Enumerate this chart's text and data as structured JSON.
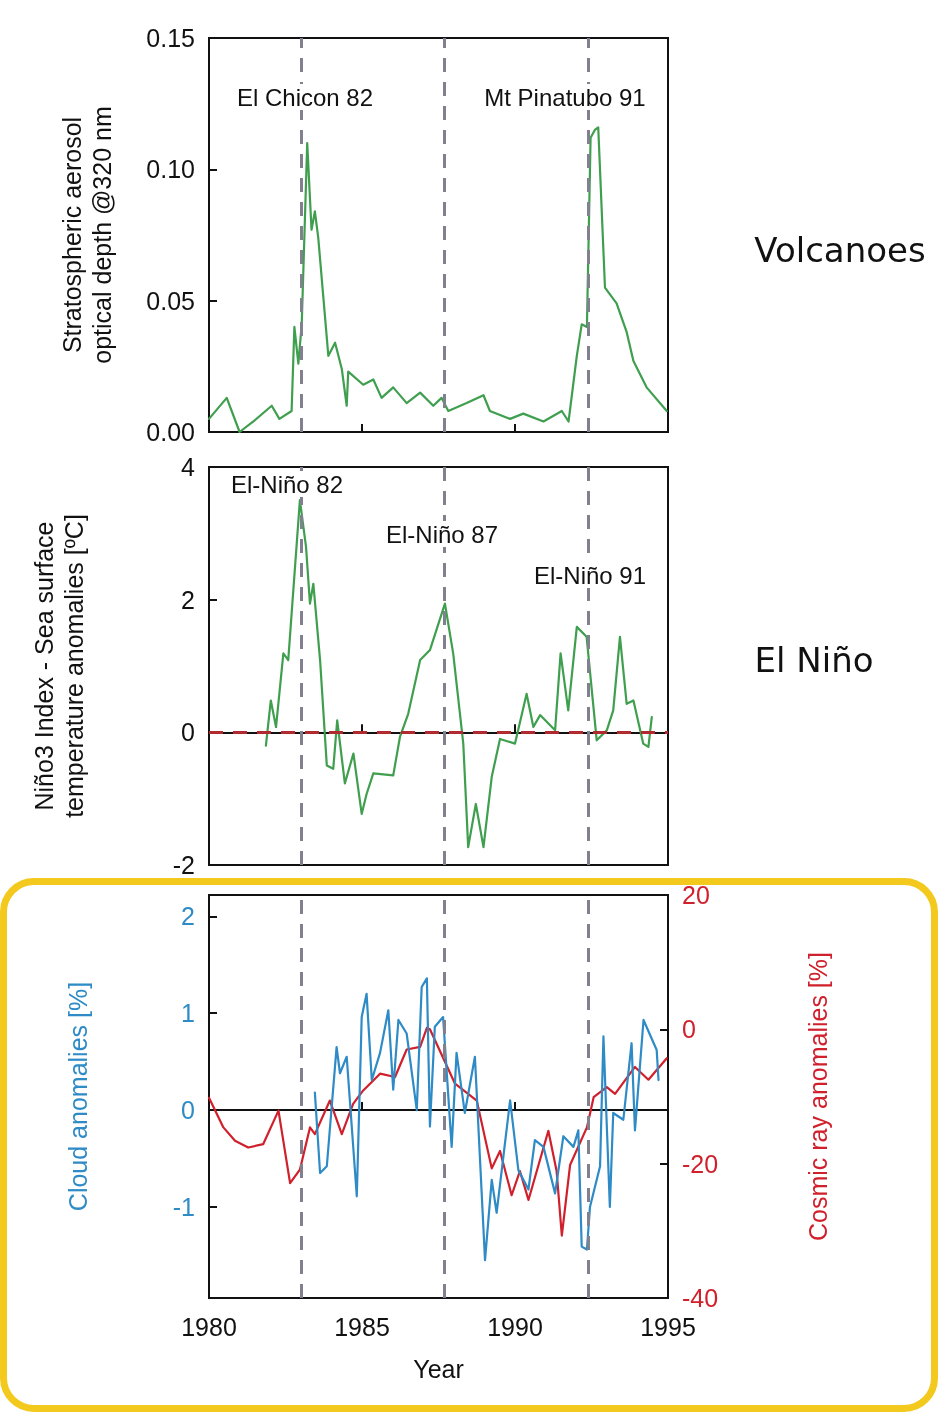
{
  "chart_data": [
    {
      "type": "line",
      "ylabel": "Stratospheric aerosol optical depth @320 nm",
      "xlim": [
        1980,
        1995
      ],
      "xticks": [
        1980,
        1985,
        1990,
        1995
      ],
      "ylim": [
        0,
        0.15
      ],
      "yticks": [
        {
          "value": 0,
          "label": "0.00"
        },
        {
          "value": 0.05,
          "label": "0.05"
        },
        {
          "value": 0.1,
          "label": "0.10"
        },
        {
          "value": 0.15,
          "label": "0.15"
        }
      ],
      "tick_labels": "y",
      "series": [
        {
          "color": "#3f9f4f",
          "x": [
            1980.0,
            1980.58,
            1981.0,
            1981.45,
            1982.05,
            1982.3,
            1982.7,
            1982.79,
            1982.92,
            1983.03,
            1983.21,
            1983.35,
            1983.46,
            1983.57,
            1983.9,
            1984.12,
            1984.34,
            1984.5,
            1984.55,
            1985.04,
            1985.37,
            1985.64,
            1986.02,
            1986.46,
            1986.9,
            1987.33,
            1987.6,
            1987.82,
            1988.42,
            1988.97,
            1989.18,
            1989.84,
            1990.27,
            1990.93,
            1991.53,
            1991.75,
            1992.02,
            1992.18,
            1992.35,
            1992.47,
            1992.61,
            1992.72,
            1992.94,
            1993.32,
            1993.65,
            1993.87,
            1994.3,
            1994.96
          ],
          "values": [
            0.005,
            0.013,
            0.0,
            0.004,
            0.01,
            0.005,
            0.008,
            0.04,
            0.026,
            0.041,
            0.11,
            0.077,
            0.084,
            0.074,
            0.029,
            0.034,
            0.024,
            0.01,
            0.023,
            0.018,
            0.02,
            0.013,
            0.017,
            0.011,
            0.015,
            0.01,
            0.013,
            0.008,
            0.011,
            0.014,
            0.008,
            0.005,
            0.007,
            0.004,
            0.008,
            0.004,
            0.029,
            0.041,
            0.04,
            0.112,
            0.115,
            0.116,
            0.055,
            0.049,
            0.038,
            0.027,
            0.017,
            0.008
          ]
        }
      ],
      "ref_lines": [
        {
          "axis": "x",
          "value": 1983.0,
          "color": "#80808f",
          "line_style": "dashed"
        },
        {
          "axis": "x",
          "value": 1987.7,
          "color": "#80808f",
          "line_style": "dashed"
        },
        {
          "axis": "x",
          "value": 1992.4,
          "color": "#80808f",
          "line_style": "dashed"
        }
      ],
      "annotations": [
        "El Chicon 82",
        "Mt Pinatubo 91",
        "Volcanoes"
      ]
    },
    {
      "type": "line",
      "ylabel": "Niño3 Index - Sea surface temperature anomalies [ºC]",
      "xlim": [
        1980,
        1995
      ],
      "xticks": [
        1980,
        1985,
        1990,
        1995
      ],
      "ylim": [
        -2,
        4
      ],
      "yticks": [
        -2,
        0,
        2,
        4
      ],
      "tick_labels": "y",
      "series": [
        {
          "color": "#3f9f4f",
          "x": [
            1981.86,
            1982.02,
            1982.19,
            1982.43,
            1982.59,
            1982.97,
            1983.17,
            1983.3,
            1983.41,
            1983.63,
            1983.85,
            1984.06,
            1984.19,
            1984.44,
            1984.72,
            1984.99,
            1985.15,
            1985.37,
            1986.02,
            1986.24,
            1986.51,
            1986.9,
            1987.22,
            1987.71,
            1987.98,
            1988.31,
            1988.47,
            1988.72,
            1988.97,
            1989.24,
            1989.51,
            1990.0,
            1990.38,
            1990.6,
            1990.82,
            1991.31,
            1991.49,
            1991.74,
            1992.02,
            1992.34,
            1992.67,
            1993.0,
            1993.21,
            1993.43,
            1993.65,
            1993.87,
            1994.19,
            1994.36,
            1994.47
          ],
          "values": [
            -0.2,
            0.48,
            0.08,
            1.19,
            1.09,
            3.5,
            2.8,
            1.94,
            2.24,
            1.09,
            -0.5,
            -0.55,
            0.18,
            -0.77,
            -0.32,
            -1.23,
            -0.93,
            -0.62,
            -0.65,
            -0.07,
            0.28,
            1.09,
            1.24,
            1.94,
            1.19,
            -0.17,
            -1.73,
            -1.08,
            -1.73,
            -0.67,
            -0.1,
            -0.17,
            0.58,
            0.08,
            0.26,
            0.03,
            1.19,
            0.33,
            1.59,
            1.44,
            -0.12,
            0.03,
            0.33,
            1.44,
            0.43,
            0.48,
            -0.17,
            -0.22,
            0.23
          ]
        }
      ],
      "ref_lines": [
        {
          "axis": "y",
          "value": 0,
          "color": "#b02a30",
          "line_style": "dashed"
        },
        {
          "axis": "x",
          "value": 1983.0,
          "color": "#80808f",
          "line_style": "dashed"
        },
        {
          "axis": "x",
          "value": 1987.7,
          "color": "#80808f",
          "line_style": "dashed"
        },
        {
          "axis": "x",
          "value": 1992.4,
          "color": "#80808f",
          "line_style": "dashed"
        }
      ],
      "annotations": [
        "El-Niño 82",
        "El-Niño 87",
        "El-Niño 91",
        "El Niño"
      ]
    },
    {
      "type": "line",
      "xlabel": "Year",
      "ylabel": "Cloud anomalies [%]",
      "y2label": "Cosmic ray anomalies [%]",
      "xlim": [
        1980,
        1995
      ],
      "xticks": [
        1980,
        1985,
        1990,
        1995
      ],
      "ylim": [
        -1.94,
        2.22
      ],
      "yticks": [
        -1,
        0,
        1,
        2
      ],
      "y2lim": [
        -40,
        20
      ],
      "y2ticks": [
        -40,
        -20,
        0,
        20
      ],
      "series": [
        {
          "color": "#d0202c",
          "axis": "y2",
          "x": [
            1980.0,
            1980.47,
            1980.85,
            1981.28,
            1981.77,
            1982.27,
            1982.65,
            1982.97,
            1983.3,
            1983.46,
            1983.95,
            1984.34,
            1984.71,
            1985.04,
            1985.59,
            1986.08,
            1986.46,
            1986.9,
            1987.12,
            1987.22,
            1988.04,
            1988.75,
            1989.24,
            1989.51,
            1989.89,
            1990.16,
            1990.44,
            1991.09,
            1991.36,
            1991.53,
            1991.8,
            1992.35,
            1992.57,
            1993.0,
            1993.27,
            1993.92,
            1994.36,
            1994.96
          ],
          "values": [
            -10.2,
            -14.6,
            -16.6,
            -17.6,
            -17.1,
            -12.1,
            -22.9,
            -20.9,
            -14.6,
            -15.6,
            -10.6,
            -15.6,
            -11.1,
            -9.1,
            -6.6,
            -7.1,
            -3.0,
            -2.6,
            0.2,
            0,
            -8.1,
            -10.6,
            -20.7,
            -18.1,
            -24.7,
            -21.1,
            -25.4,
            -15.1,
            -21.1,
            -30.7,
            -20.2,
            -14.6,
            -10.1,
            -8.6,
            -9.6,
            -5.6,
            -7.5,
            -4.3
          ]
        },
        {
          "color": "#2e8bc6",
          "x": [
            1983.46,
            1983.63,
            1983.85,
            1984.17,
            1984.28,
            1984.5,
            1984.83,
            1984.99,
            1985.15,
            1985.32,
            1985.59,
            1985.86,
            1986.02,
            1986.19,
            1986.46,
            1986.79,
            1986.95,
            1987.12,
            1987.22,
            1987.38,
            1987.65,
            1987.93,
            1988.09,
            1988.36,
            1988.69,
            1989.02,
            1989.24,
            1989.4,
            1989.84,
            1990.11,
            1990.44,
            1990.65,
            1990.93,
            1991.31,
            1991.58,
            1991.91,
            1992.07,
            1992.18,
            1992.35,
            1992.45,
            1992.78,
            1992.89,
            1993.1,
            1993.21,
            1993.54,
            1993.81,
            1993.92,
            1994.2,
            1994.63,
            1994.69
          ],
          "values": [
            0.18,
            -0.65,
            -0.58,
            0.65,
            0.38,
            0.55,
            -0.89,
            0.96,
            1.2,
            0.31,
            0.59,
            1.03,
            0.21,
            0.93,
            0.79,
            0.0,
            1.27,
            1.36,
            -0.17,
            0.86,
            0.96,
            -0.38,
            0.59,
            -0.03,
            0.55,
            -1.55,
            -0.72,
            -1.06,
            0.1,
            -0.62,
            -0.82,
            -0.31,
            -0.38,
            -0.86,
            -0.27,
            -0.38,
            -0.21,
            -1.41,
            -1.44,
            -1.0,
            -0.58,
            0.76,
            -1.0,
            -0.03,
            -0.1,
            0.69,
            -0.21,
            0.93,
            0.62,
            0.31
          ]
        }
      ],
      "ref_lines": [
        {
          "axis": "x",
          "value": 1983.0,
          "color": "#80808f",
          "line_style": "dashed"
        },
        {
          "axis": "x",
          "value": 1987.7,
          "color": "#80808f",
          "line_style": "dashed"
        },
        {
          "axis": "x",
          "value": 1992.4,
          "color": "#80808f",
          "line_style": "dashed"
        }
      ]
    }
  ]
}
